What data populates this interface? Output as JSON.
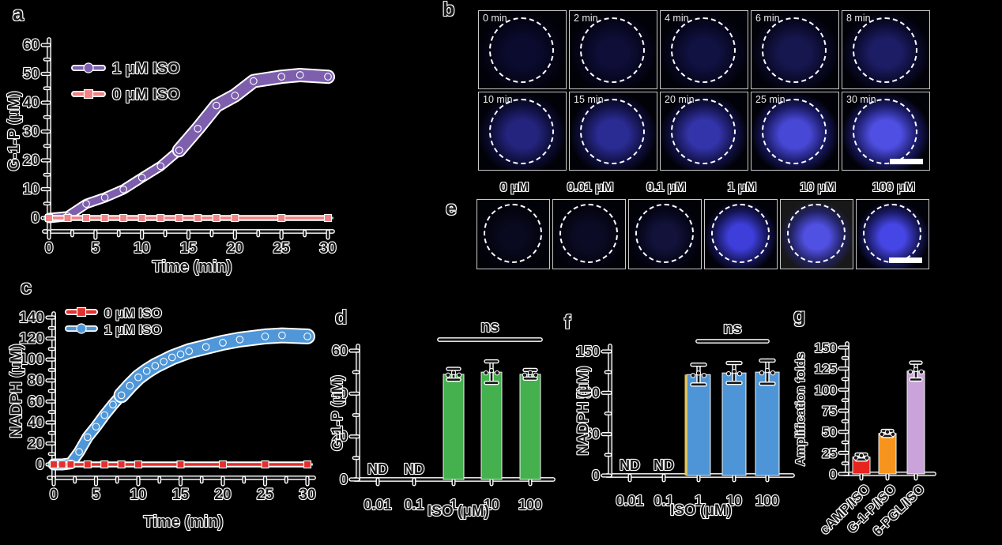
{
  "figure": {
    "background": "#000000",
    "panels": {
      "a": {
        "letter": "a"
      },
      "b": {
        "letter": "b",
        "rows": [
          [
            {
              "label": "0 min",
              "center": "#0b0b30",
              "mid": "#05051a"
            },
            {
              "label": "2 min",
              "center": "#0e0e38",
              "mid": "#06061e"
            },
            {
              "label": "4 min",
              "center": "#111142",
              "mid": "#070722"
            },
            {
              "label": "6 min",
              "center": "#171750",
              "mid": "#090928"
            },
            {
              "label": "8 min",
              "center": "#1d1d66",
              "mid": "#0b0b30"
            }
          ],
          [
            {
              "label": "10 min",
              "center": "#24247e",
              "mid": "#0d0d38"
            },
            {
              "label": "15 min",
              "center": "#2b2b94",
              "mid": "#101042"
            },
            {
              "label": "20 min",
              "center": "#3434aa",
              "mid": "#12124a"
            },
            {
              "label": "25 min",
              "center": "#4848d6",
              "mid": "#17175e"
            },
            {
              "label": "30 min",
              "center": "#4f4fe4",
              "mid": "#1a1a66",
              "scale_bar": true
            }
          ]
        ]
      },
      "c": {
        "letter": "c"
      },
      "d": {
        "letter": "d"
      },
      "e": {
        "letter": "e",
        "cells": [
          {
            "label": "0 μM",
            "center": "#09091f",
            "mid": "#040410"
          },
          {
            "label": "0.01 μM",
            "center": "#0b0b26",
            "mid": "#050514"
          },
          {
            "label": "0.1 μM",
            "center": "#12123a",
            "mid": "#06061c"
          },
          {
            "label": "1 μM",
            "center": "#3e3eda",
            "mid": "#16165c"
          },
          {
            "label": "10 μM",
            "center": "#5050e2",
            "mid": "#222264",
            "bg": "#181818"
          },
          {
            "label": "100 μM",
            "center": "#4646e6",
            "mid": "#191962",
            "scale_bar": true
          }
        ]
      },
      "f": {
        "letter": "f"
      },
      "g": {
        "letter": "g"
      }
    }
  },
  "chart_data": [
    {
      "id": "a",
      "type": "line",
      "title": "",
      "xlabel": "Time (min)",
      "ylabel": "G-1-P (μM)",
      "xlim": [
        0,
        30
      ],
      "ylim": [
        0,
        60
      ],
      "xticks": [
        0,
        5,
        10,
        15,
        20,
        25,
        30
      ],
      "yticks": [
        0,
        10,
        20,
        30,
        40,
        50,
        60
      ],
      "grid": false,
      "legend_position": "top-left",
      "legend": [
        {
          "label": "1 μM ISO",
          "color": "#7d5fae",
          "marker": "circle"
        },
        {
          "label": "0 μM ISO",
          "color": "#f08384",
          "marker": "square"
        }
      ],
      "series": [
        {
          "name": "1 μM ISO",
          "color": "#7d5fae",
          "marker": "circle",
          "band_width": 9,
          "band_grow": {
            "from_x": 14,
            "width": 14
          },
          "x": [
            0,
            2,
            4,
            6,
            8,
            10,
            12,
            14,
            16,
            18,
            20,
            22,
            25,
            27,
            30
          ],
          "y": [
            0,
            0.6,
            4.9,
            7.1,
            9.9,
            14,
            18,
            23.5,
            31,
            39,
            42.5,
            47.5,
            49,
            49.6,
            49
          ]
        },
        {
          "name": "0 μM ISO",
          "color": "#f08384",
          "marker": "square",
          "line_width": 3.5,
          "err_tick_color": "#7fd8d8",
          "x": [
            0,
            2,
            4,
            6,
            8,
            10,
            12,
            14,
            16,
            18,
            20,
            25,
            30
          ],
          "y": [
            0,
            0,
            0,
            0,
            0,
            0,
            0,
            0,
            0,
            0,
            0,
            0,
            0
          ]
        }
      ]
    },
    {
      "id": "c",
      "type": "line",
      "title": "",
      "xlabel": "Time (min)",
      "ylabel": "NADPH (μM)",
      "xlim": [
        0,
        30
      ],
      "ylim": [
        0,
        140
      ],
      "xticks": [
        0,
        5,
        10,
        15,
        20,
        25,
        30
      ],
      "yticks": [
        0,
        20,
        40,
        60,
        80,
        100,
        120,
        140
      ],
      "grid": false,
      "legend_position": "top-left",
      "legend": [
        {
          "label": "0 μM ISO",
          "color": "#e2302e",
          "marker": "square"
        },
        {
          "label": "1 μM ISO",
          "color": "#4f97d9",
          "marker": "circle"
        }
      ],
      "series": [
        {
          "name": "1 μM ISO",
          "color": "#4f97d9",
          "marker": "circle",
          "band_width": 11,
          "band_grow": {
            "from_x": 8,
            "width": 16
          },
          "x": [
            0,
            1,
            2,
            3,
            4,
            5,
            6,
            7,
            8,
            9,
            10,
            11,
            12,
            13,
            14,
            15,
            16,
            18,
            20,
            22,
            25,
            27,
            30
          ],
          "y": [
            0,
            0,
            1,
            12,
            26,
            36,
            47,
            57,
            66,
            75,
            83,
            89,
            94,
            98,
            102,
            105,
            108,
            112,
            116,
            119,
            122,
            123,
            122
          ]
        },
        {
          "name": "0 μM ISO",
          "color": "#e2302e",
          "marker": "square",
          "line_width": 3.5,
          "err_tick_color": "#7fd8d8",
          "x": [
            0,
            1,
            2,
            4,
            6,
            8,
            10,
            15,
            20,
            25,
            30
          ],
          "y": [
            0,
            0,
            0,
            0,
            0,
            0,
            0,
            0,
            0,
            0,
            0
          ]
        }
      ]
    },
    {
      "id": "d",
      "type": "bar",
      "title": "",
      "xlabel": "ISO (μM)",
      "ylabel": "G-1-P (μM)",
      "ylim": [
        0,
        60
      ],
      "yticks": [
        0,
        20,
        40,
        60
      ],
      "categories": [
        "0.01",
        "0.1",
        "1",
        "10",
        "100"
      ],
      "values": [
        null,
        null,
        49,
        50,
        49
      ],
      "errors": [
        null,
        null,
        2.5,
        5,
        2
      ],
      "bar_color": "#44b04e",
      "nd_label": "ND",
      "ns": {
        "label": "ns",
        "from": 2,
        "to": 4
      }
    },
    {
      "id": "f",
      "type": "bar",
      "title": "",
      "xlabel": "ISO (μM)",
      "ylabel": "NADPH (μM)",
      "ylim": [
        0,
        150
      ],
      "yticks": [
        0,
        50,
        100,
        150
      ],
      "categories": [
        "0.01",
        "0.1",
        "1",
        "10",
        "100"
      ],
      "values": [
        null,
        null,
        122,
        124,
        125
      ],
      "errors": [
        null,
        null,
        12,
        12,
        14
      ],
      "bar_color": "#4e95d7",
      "left_edge_artifact": "#f0c43c",
      "nd_label": "ND",
      "ns": {
        "label": "ns",
        "from": 2,
        "to": 4
      }
    },
    {
      "id": "g",
      "type": "bar",
      "title": "",
      "xlabel": "",
      "ylabel": "Amplification folds",
      "ylim": [
        0,
        150
      ],
      "yticks": [
        0,
        25,
        50,
        75,
        100,
        125,
        150
      ],
      "categories": [
        "cAMP/ISO",
        "G-1-P/ISO",
        "6-PGL/ISO"
      ],
      "values": [
        20,
        48,
        122
      ],
      "errors": [
        3,
        3,
        10
      ],
      "bar_colors": [
        "#e8241f",
        "#f7941e",
        "#c9a3d9"
      ],
      "rotated_labels": true
    }
  ]
}
